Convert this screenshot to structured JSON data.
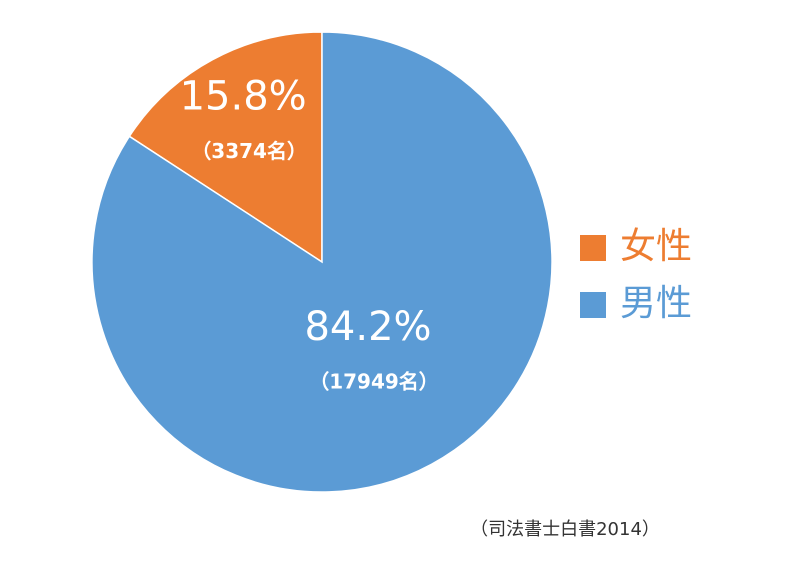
{
  "chart_data": {
    "type": "pie",
    "categories": [
      "女性",
      "男性"
    ],
    "values": [
      15.8,
      84.2
    ],
    "value_labels": [
      "15.8%",
      "84.2%"
    ],
    "counts": [
      3374,
      17949
    ],
    "count_labels": [
      "（3374名）",
      "（17949名）"
    ],
    "colors": [
      "#ed7d31",
      "#5b9bd5"
    ],
    "legend": "right",
    "source": "（司法書士白書2014）"
  }
}
